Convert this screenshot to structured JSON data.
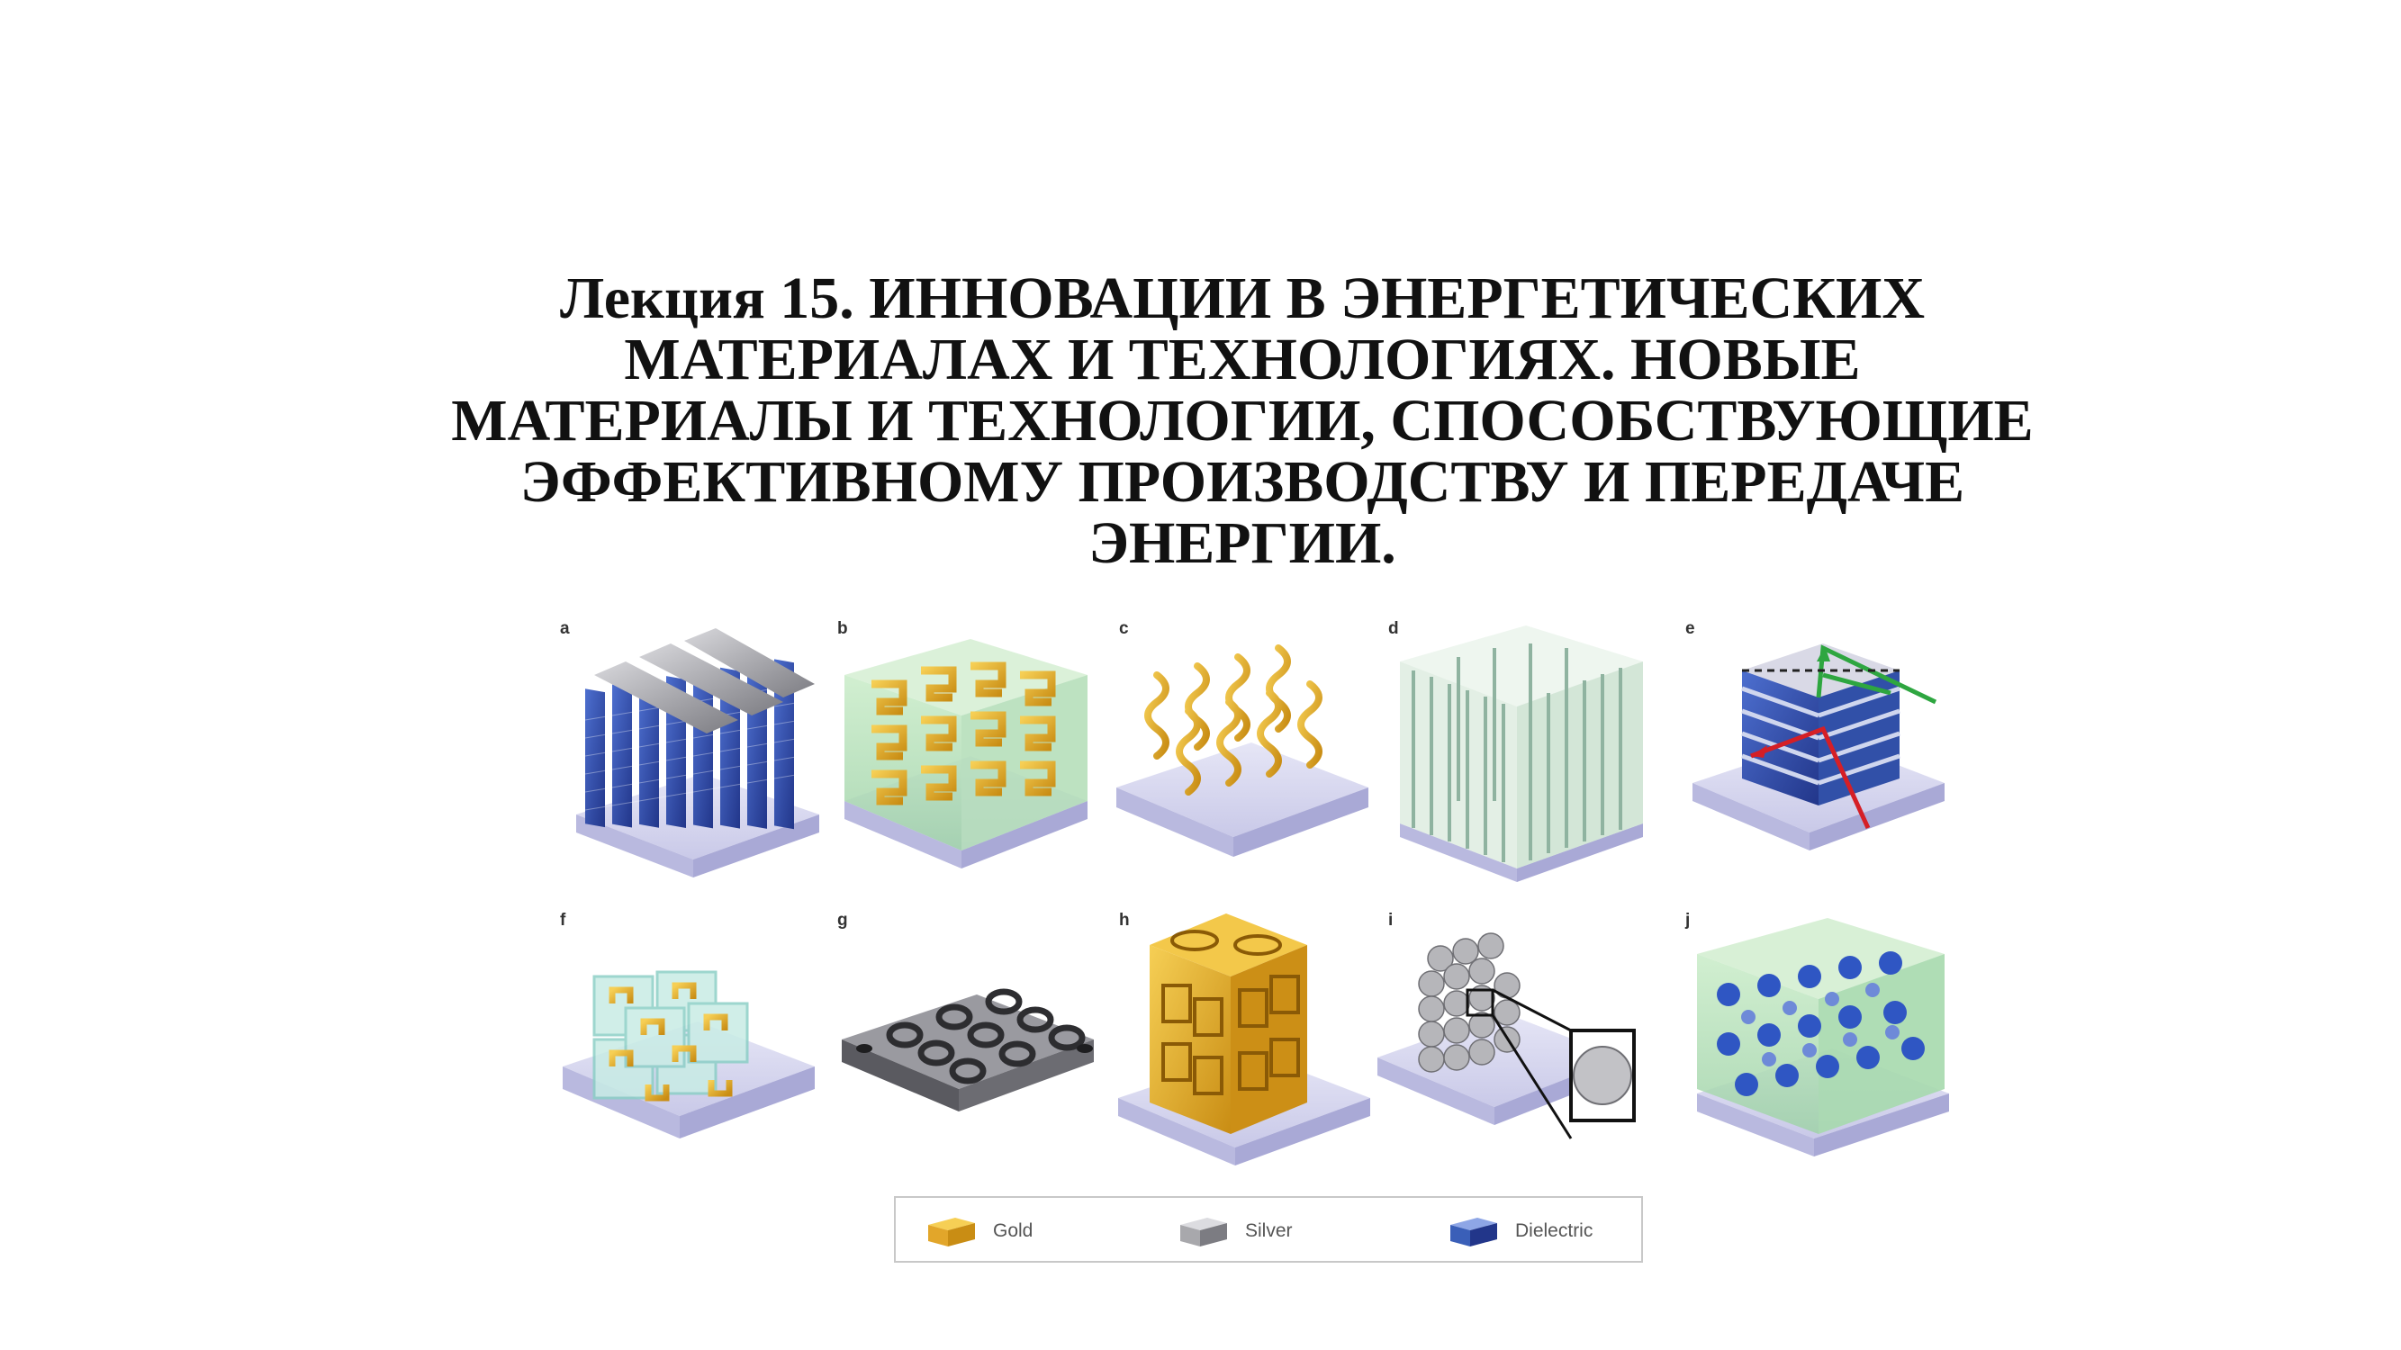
{
  "slide": {
    "title_lines": [
      "Лекция 15. ИННОВАЦИИ В ЭНЕРГЕТИЧЕСКИХ",
      "МАТЕРИАЛАХ И ТЕХНОЛОГИЯХ. НОВЫЕ",
      "МАТЕРИАЛЫ И ТЕХНОЛОГИИ, СПОСОБСТВУЮЩИЕ",
      "ЭФФЕКТИВНОМУ ПРОИЗВОДСТВУ И ПЕРЕДАЧЕ",
      "ЭНЕРГИИ."
    ]
  },
  "figure": {
    "panels": [
      {
        "label": "a",
        "icon": "fishnet-stack-icon"
      },
      {
        "label": "b",
        "icon": "split-ring-layer-icon"
      },
      {
        "label": "c",
        "icon": "helix-array-icon"
      },
      {
        "label": "d",
        "icon": "nanowire-array-icon"
      },
      {
        "label": "e",
        "icon": "hyperbolic-multilayer-icon"
      },
      {
        "label": "f",
        "icon": "srr-cubes-icon"
      },
      {
        "label": "g",
        "icon": "ring-holes-film-icon"
      },
      {
        "label": "h",
        "icon": "gold-cube-metamaterial-icon"
      },
      {
        "label": "i",
        "icon": "nanosphere-cluster-icon"
      },
      {
        "label": "j",
        "icon": "dielectric-spheres-icon"
      }
    ],
    "legend": [
      {
        "label": "Gold",
        "color": "#e8b22a"
      },
      {
        "label": "Silver",
        "color": "#a8a8ac"
      },
      {
        "label": "Dielectric",
        "color": "#3a5fb8"
      }
    ]
  }
}
